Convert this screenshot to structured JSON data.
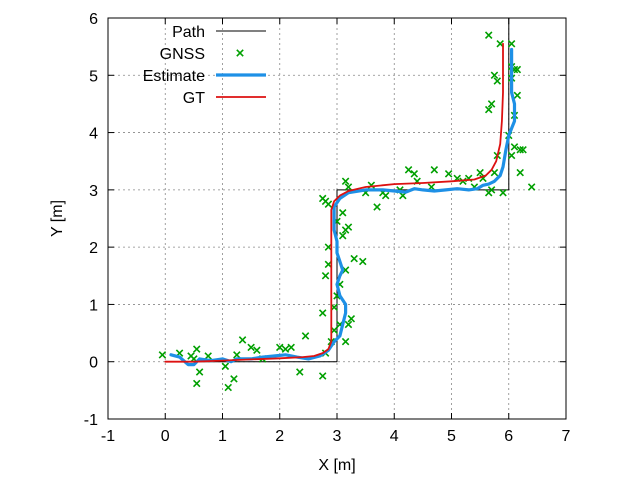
{
  "chart_data": {
    "type": "line",
    "xlabel": "X [m]",
    "ylabel": "Y [m]",
    "xlim": [
      -1,
      7
    ],
    "ylim": [
      -1,
      6
    ],
    "xticks": [
      "-1",
      "0",
      "1",
      "2",
      "3",
      "4",
      "5",
      "6",
      "7"
    ],
    "yticks": [
      "-1",
      "0",
      "1",
      "2",
      "3",
      "4",
      "5",
      "6"
    ],
    "grid": true,
    "legend_position": "top-left",
    "series": [
      {
        "name": "Path",
        "kind": "line",
        "color": "#000000",
        "points": [
          [
            0,
            0
          ],
          [
            3,
            0
          ],
          [
            3,
            3
          ],
          [
            6,
            3
          ],
          [
            6,
            6
          ]
        ]
      },
      {
        "name": "GNSS",
        "kind": "scatter",
        "color": "#00a000",
        "points": [
          [
            -0.05,
            0.12
          ],
          [
            0.25,
            0.15
          ],
          [
            0.45,
            0.1
          ],
          [
            0.5,
            0.05
          ],
          [
            0.55,
            0.22
          ],
          [
            0.55,
            -0.38
          ],
          [
            0.6,
            -0.18
          ],
          [
            0.75,
            0.1
          ],
          [
            1.05,
            -0.08
          ],
          [
            1.1,
            -0.45
          ],
          [
            1.2,
            -0.3
          ],
          [
            1.25,
            0.12
          ],
          [
            1.35,
            0.38
          ],
          [
            1.5,
            0.25
          ],
          [
            1.6,
            0.2
          ],
          [
            1.7,
            0.05
          ],
          [
            2.0,
            0.25
          ],
          [
            2.1,
            0.22
          ],
          [
            2.2,
            0.25
          ],
          [
            2.35,
            -0.18
          ],
          [
            2.45,
            0.45
          ],
          [
            2.75,
            -0.25
          ],
          [
            2.75,
            0.85
          ],
          [
            2.8,
            0.15
          ],
          [
            2.9,
            0.35
          ],
          [
            2.95,
            0.55
          ],
          [
            2.95,
            0.95
          ],
          [
            3.05,
            0.65
          ],
          [
            3.15,
            0.35
          ],
          [
            3.2,
            0.65
          ],
          [
            3.25,
            0.75
          ],
          [
            3.0,
            1.15
          ],
          [
            3.05,
            1.35
          ],
          [
            2.8,
            1.5
          ],
          [
            2.85,
            1.7
          ],
          [
            2.85,
            2.0
          ],
          [
            3.1,
            2.2
          ],
          [
            3.15,
            2.3
          ],
          [
            3.2,
            2.35
          ],
          [
            3.0,
            2.45
          ],
          [
            3.15,
            1.6
          ],
          [
            3.3,
            1.8
          ],
          [
            3.45,
            1.75
          ],
          [
            2.75,
            2.85
          ],
          [
            2.8,
            2.8
          ],
          [
            2.85,
            2.75
          ],
          [
            3.1,
            2.6
          ],
          [
            3.15,
            3.15
          ],
          [
            3.2,
            3.05
          ],
          [
            3.5,
            2.95
          ],
          [
            3.6,
            3.08
          ],
          [
            3.7,
            2.7
          ],
          [
            3.8,
            2.95
          ],
          [
            3.85,
            2.9
          ],
          [
            4.1,
            3.0
          ],
          [
            4.15,
            2.9
          ],
          [
            4.25,
            3.35
          ],
          [
            4.35,
            3.28
          ],
          [
            4.4,
            3.15
          ],
          [
            4.65,
            3.05
          ],
          [
            4.7,
            3.35
          ],
          [
            4.95,
            3.28
          ],
          [
            5.1,
            3.2
          ],
          [
            5.2,
            3.15
          ],
          [
            5.3,
            3.2
          ],
          [
            5.4,
            3.05
          ],
          [
            5.5,
            3.3
          ],
          [
            5.55,
            3.2
          ],
          [
            5.65,
            2.95
          ],
          [
            5.7,
            3.0
          ],
          [
            5.75,
            3.3
          ],
          [
            5.8,
            3.6
          ],
          [
            5.9,
            2.95
          ],
          [
            6.0,
            3.95
          ],
          [
            6.05,
            3.6
          ],
          [
            6.1,
            4.3
          ],
          [
            6.15,
            4.65
          ],
          [
            6.1,
            3.75
          ],
          [
            6.2,
            3.7
          ],
          [
            6.2,
            3.3
          ],
          [
            6.25,
            3.7
          ],
          [
            6.4,
            3.05
          ],
          [
            6.1,
            5.1
          ],
          [
            6.15,
            5.1
          ],
          [
            6.05,
            5.15
          ],
          [
            6.05,
            4.95
          ],
          [
            5.75,
            5.0
          ],
          [
            5.8,
            4.9
          ],
          [
            5.7,
            4.5
          ],
          [
            5.65,
            4.4
          ],
          [
            5.85,
            5.55
          ],
          [
            5.65,
            5.7
          ],
          [
            6.05,
            5.55
          ]
        ]
      },
      {
        "name": "Estimate",
        "kind": "line",
        "color": "#1e90e6",
        "points": [
          [
            0.1,
            0.12
          ],
          [
            0.25,
            0.08
          ],
          [
            0.4,
            -0.05
          ],
          [
            0.5,
            -0.05
          ],
          [
            0.6,
            0.05
          ],
          [
            0.8,
            0.02
          ],
          [
            1.0,
            0.05
          ],
          [
            1.15,
            0.0
          ],
          [
            1.25,
            0.05
          ],
          [
            1.5,
            0.05
          ],
          [
            1.7,
            0.08
          ],
          [
            1.9,
            0.1
          ],
          [
            2.1,
            0.12
          ],
          [
            2.3,
            0.08
          ],
          [
            2.5,
            0.05
          ],
          [
            2.7,
            0.1
          ],
          [
            2.85,
            0.2
          ],
          [
            2.95,
            0.35
          ],
          [
            3.05,
            0.45
          ],
          [
            3.1,
            0.65
          ],
          [
            3.15,
            0.85
          ],
          [
            3.15,
            1.0
          ],
          [
            3.05,
            1.15
          ],
          [
            3.0,
            1.35
          ],
          [
            3.05,
            1.5
          ],
          [
            3.1,
            1.6
          ],
          [
            3.05,
            1.75
          ],
          [
            3.0,
            1.9
          ],
          [
            3.0,
            2.1
          ],
          [
            2.95,
            2.3
          ],
          [
            2.95,
            2.5
          ],
          [
            2.95,
            2.7
          ],
          [
            3.05,
            2.85
          ],
          [
            3.2,
            2.95
          ],
          [
            3.5,
            3.0
          ],
          [
            3.8,
            3.0
          ],
          [
            4.0,
            2.98
          ],
          [
            4.2,
            2.96
          ],
          [
            4.35,
            3.02
          ],
          [
            4.5,
            3.0
          ],
          [
            4.7,
            2.98
          ],
          [
            4.9,
            3.0
          ],
          [
            5.1,
            3.02
          ],
          [
            5.3,
            3.0
          ],
          [
            5.45,
            3.02
          ],
          [
            5.55,
            3.08
          ],
          [
            5.65,
            3.1
          ],
          [
            5.75,
            3.15
          ],
          [
            5.85,
            3.25
          ],
          [
            5.9,
            3.4
          ],
          [
            5.95,
            3.7
          ],
          [
            6.0,
            3.95
          ],
          [
            6.1,
            4.2
          ],
          [
            6.1,
            4.5
          ],
          [
            6.05,
            4.7
          ],
          [
            6.05,
            5.0
          ],
          [
            6.05,
            5.2
          ],
          [
            6.05,
            5.45
          ]
        ]
      },
      {
        "name": "GT",
        "kind": "line",
        "color": "#dd1111",
        "points": [
          [
            0,
            0
          ],
          [
            0.5,
            0.0
          ],
          [
            1.0,
            0.02
          ],
          [
            1.5,
            0.04
          ],
          [
            2.0,
            0.06
          ],
          [
            2.4,
            0.08
          ],
          [
            2.6,
            0.1
          ],
          [
            2.75,
            0.15
          ],
          [
            2.85,
            0.22
          ],
          [
            2.9,
            0.35
          ],
          [
            2.9,
            0.6
          ],
          [
            2.9,
            1.0
          ],
          [
            2.9,
            1.5
          ],
          [
            2.9,
            2.0
          ],
          [
            2.9,
            2.4
          ],
          [
            2.9,
            2.65
          ],
          [
            2.95,
            2.8
          ],
          [
            3.05,
            2.9
          ],
          [
            3.2,
            2.98
          ],
          [
            3.5,
            3.05
          ],
          [
            4.0,
            3.1
          ],
          [
            4.5,
            3.12
          ],
          [
            5.0,
            3.15
          ],
          [
            5.4,
            3.18
          ],
          [
            5.6,
            3.25
          ],
          [
            5.7,
            3.35
          ],
          [
            5.78,
            3.5
          ],
          [
            5.85,
            3.8
          ],
          [
            5.88,
            4.2
          ],
          [
            5.9,
            4.7
          ],
          [
            5.9,
            5.2
          ],
          [
            5.9,
            5.55
          ]
        ]
      }
    ]
  }
}
